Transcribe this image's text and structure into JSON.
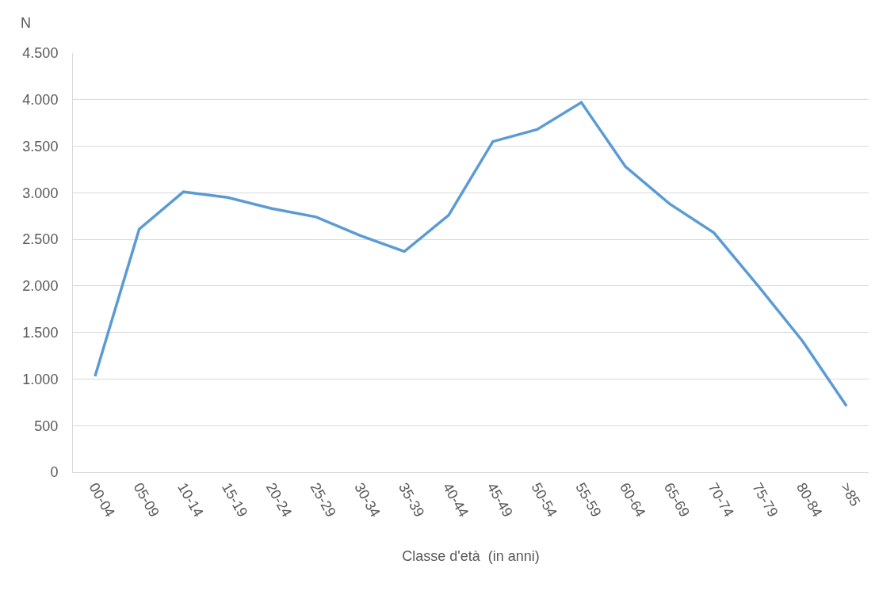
{
  "chart_data": {
    "type": "line",
    "ylabel": "N",
    "xlabel": "Classe d'età  (in anni)",
    "categories": [
      "00-04",
      "05-09",
      "10-14",
      "15-19",
      "20-24",
      "25-29",
      "30-34",
      "35-39",
      "40-44",
      "45-49",
      "50-54",
      "55-59",
      "60-64",
      "65-69",
      "70-74",
      "75-79",
      "80-84",
      ">85"
    ],
    "series": [
      {
        "color": "#5b9bd5",
        "values": [
          1030,
          2610,
          3010,
          2950,
          2830,
          2740,
          2540,
          2370,
          2760,
          3550,
          3680,
          3970,
          3280,
          2880,
          2570,
          2000,
          1410,
          710
        ]
      }
    ],
    "ylim": [
      0,
      4500
    ],
    "yticks": [
      0,
      500,
      {
        "value": 1000,
        "label": "1.000"
      },
      {
        "value": 1500,
        "label": "1.500"
      },
      {
        "value": 2000,
        "label": "2.000"
      },
      {
        "value": 2500,
        "label": "2.500"
      },
      {
        "value": 3000,
        "label": "3.000"
      },
      {
        "value": 3500,
        "label": "3.500"
      },
      {
        "value": 4000,
        "label": "4.000"
      },
      {
        "value": 4500,
        "label": "4.500"
      }
    ],
    "grid": "y",
    "marker": "none",
    "line_style": "solid"
  }
}
